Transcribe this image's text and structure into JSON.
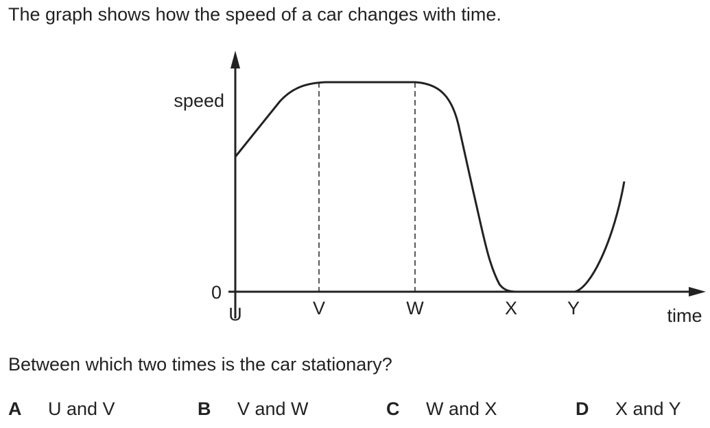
{
  "question": {
    "intro": "The graph shows how the speed of a car changes with time.",
    "prompt": "Between which two times is the car stationary?"
  },
  "graph": {
    "y_axis_label": "speed",
    "x_axis_label": "time",
    "origin_label": "0",
    "time_marks": [
      "U",
      "V",
      "W",
      "X",
      "Y"
    ]
  },
  "options": [
    {
      "letter": "A",
      "text": "U and V"
    },
    {
      "letter": "B",
      "text": "V and W"
    },
    {
      "letter": "C",
      "text": "W and X"
    },
    {
      "letter": "D",
      "text": "X and Y"
    }
  ],
  "colors": {
    "ink": "#222222",
    "background": "#ffffff"
  }
}
